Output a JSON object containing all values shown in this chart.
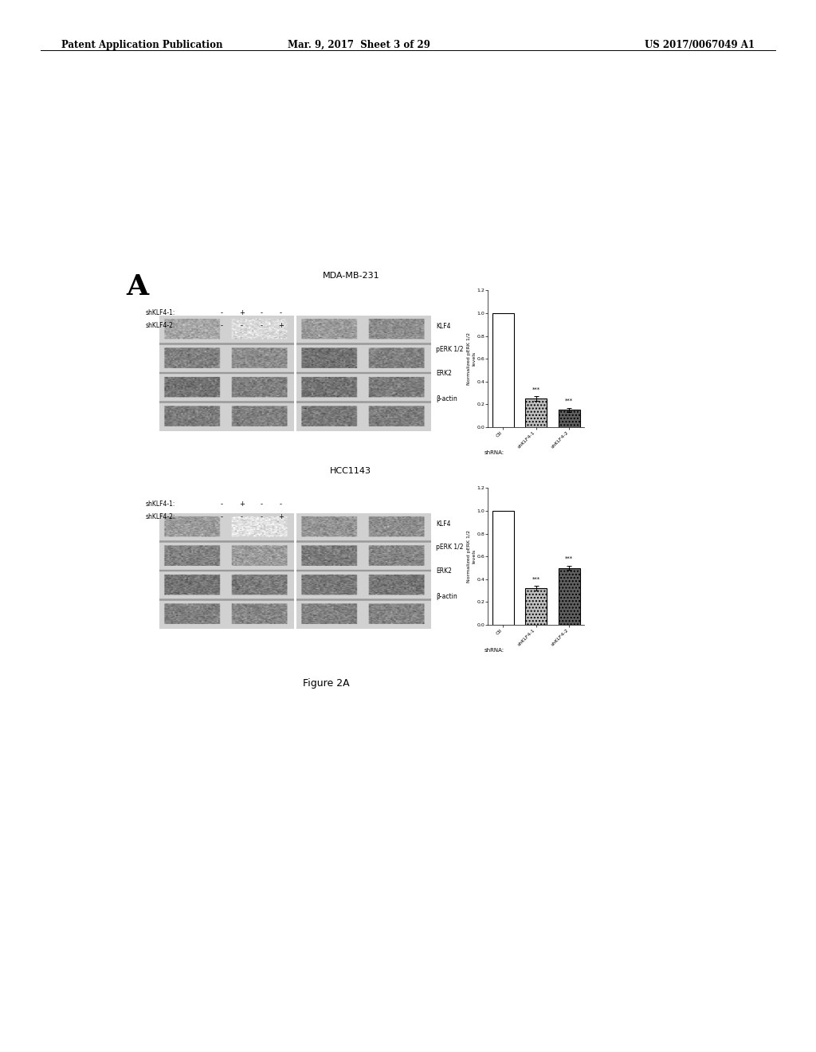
{
  "header_left": "Patent Application Publication",
  "header_mid": "Mar. 9, 2017  Sheet 3 of 29",
  "header_right": "US 2017/0067049 A1",
  "figure_label": "A",
  "figure_caption": "Figure 2A",
  "panel1_title": "MDA-MB-231",
  "panel1_shklf41_label": "shKLF4-1:",
  "panel1_shklf42_label": "shKLF4-2:",
  "panel1_signs_row1": [
    "-",
    "+",
    "-",
    "-"
  ],
  "panel1_signs_row2": [
    "-",
    "-",
    "-",
    "+"
  ],
  "panel1_blot_labels": [
    "KLF4",
    "pERK 1/2",
    "ERK2",
    "β-actin"
  ],
  "panel1_bar_values": [
    1.0,
    0.25,
    0.15
  ],
  "panel1_bar_colors": [
    "white",
    "#b8b8b8",
    "#505050"
  ],
  "panel1_bar_labels": [
    "Ctl",
    "shKLF4-1",
    "shKLF4-2"
  ],
  "panel1_ylabel": "Normalized pERK 1/2\nlevels",
  "panel1_xlabel": "shRNA:",
  "panel1_ylim": [
    0,
    1.2
  ],
  "panel1_yticks": [
    0.0,
    0.2,
    0.4,
    0.6,
    0.8,
    1.0,
    1.2
  ],
  "panel1_stars": [
    "",
    "***",
    "***"
  ],
  "panel2_title": "HCC1143",
  "panel2_shklf41_label": "shKLF4-1:",
  "panel2_shklf42_label": "shKLF4-2:",
  "panel2_signs_row1": [
    "-",
    "+",
    "-",
    "-"
  ],
  "panel2_signs_row2": [
    "-",
    "-",
    "-",
    "+"
  ],
  "panel2_blot_labels": [
    "KLF4",
    "pERK 1/2",
    "ERK2",
    "β-actin"
  ],
  "panel2_bar_values": [
    1.0,
    0.32,
    0.5
  ],
  "panel2_bar_colors": [
    "white",
    "#b8b8b8",
    "#505050"
  ],
  "panel2_bar_labels": [
    "Ctl",
    "shKLF4-1",
    "shKLF4-2"
  ],
  "panel2_ylabel": "Normalized pERK 1/2\nlevels",
  "panel2_xlabel": "shRNA:",
  "panel2_ylim": [
    0,
    1.2
  ],
  "panel2_yticks": [
    0.0,
    0.2,
    0.4,
    0.6,
    0.8,
    1.0,
    1.2
  ],
  "panel2_stars": [
    "",
    "***",
    "***"
  ],
  "background_color": "#ffffff",
  "text_color": "#000000"
}
